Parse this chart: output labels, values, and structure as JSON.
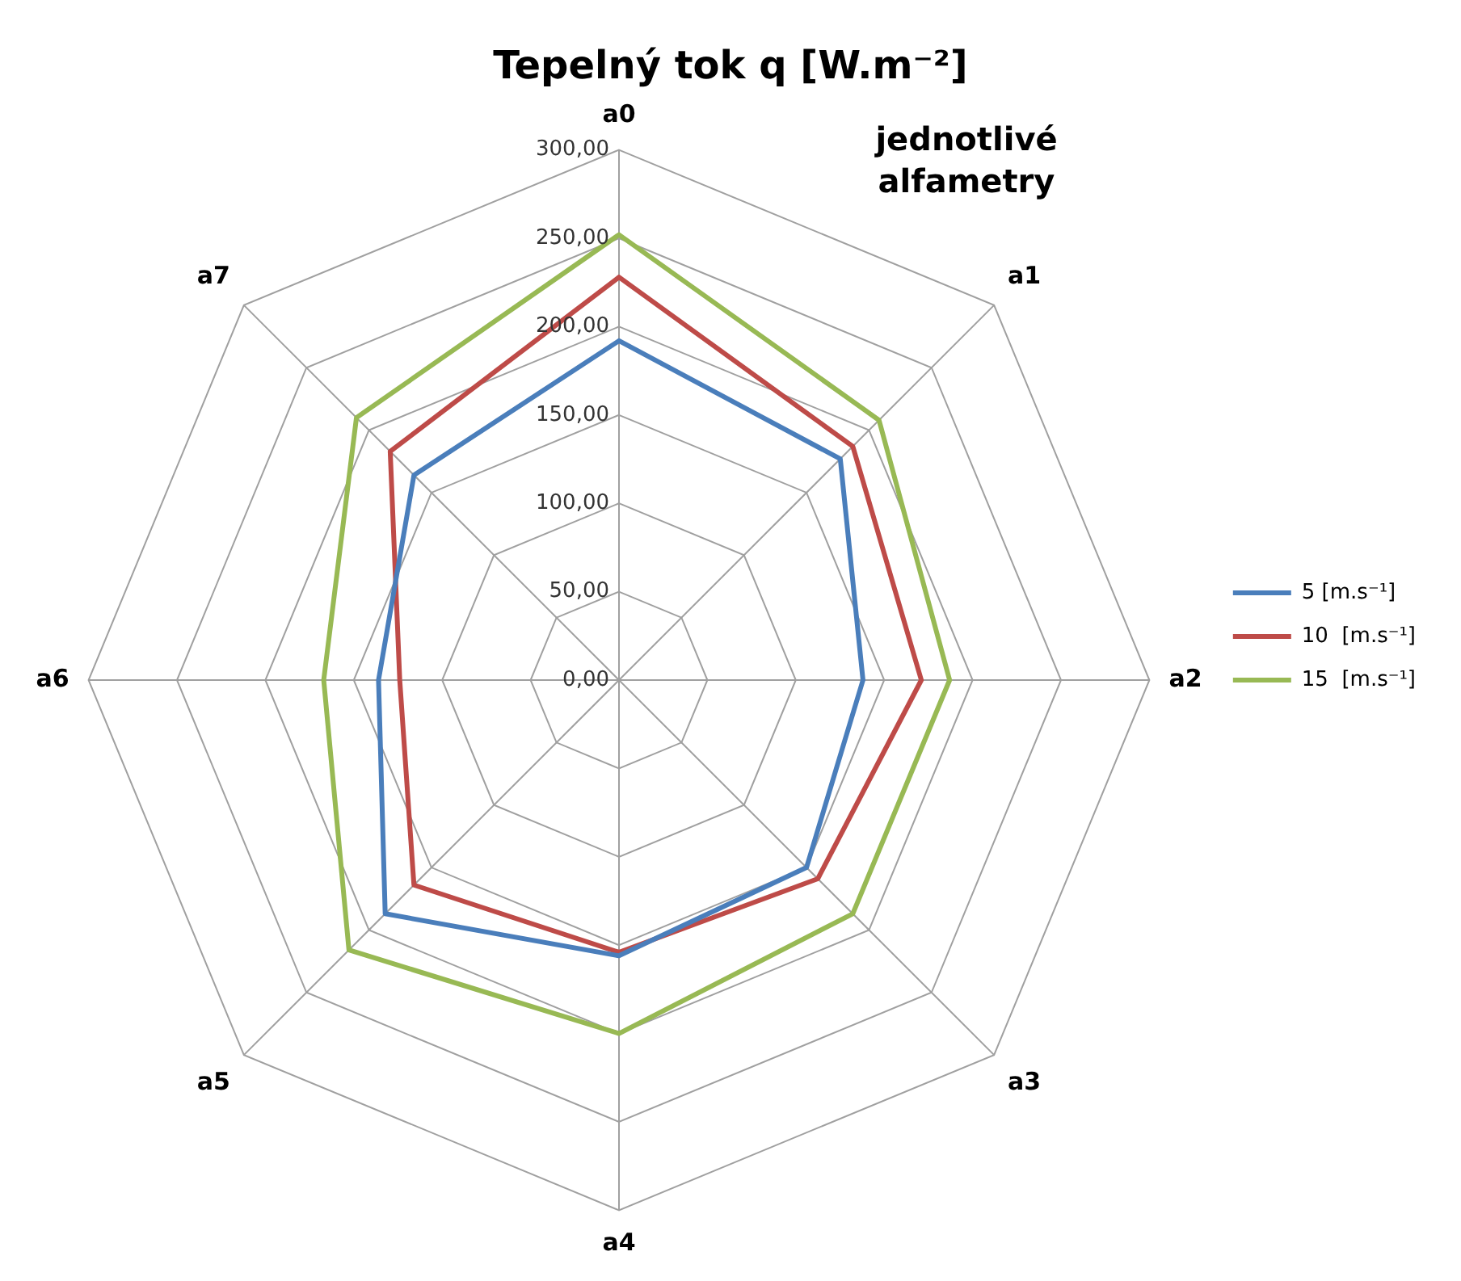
{
  "chart_data": {
    "type": "radar",
    "title": "Tepelný tok q [W.m⁻²]",
    "categories": [
      "a0",
      "a1",
      "a2",
      "a3",
      "a4",
      "a5",
      "a6",
      "a7"
    ],
    "series": [
      {
        "name": "5 [m.s⁻¹]",
        "color": "#4a7ebb",
        "values": [
          192,
          177,
          138,
          150,
          156,
          187,
          136,
          164
        ]
      },
      {
        "name": "10  [m.s⁻¹]",
        "color": "#be4b48",
        "values": [
          228,
          187,
          171,
          159,
          154,
          164,
          124,
          183
        ]
      },
      {
        "name": "15  [m.s⁻¹]",
        "color": "#98b954",
        "values": [
          252,
          208,
          187,
          187,
          200,
          216,
          167,
          210
        ]
      }
    ],
    "ylim": [
      0,
      300
    ],
    "yticks": [
      {
        "value": 0,
        "label": "0,00"
      },
      {
        "value": 50,
        "label": "50,00"
      },
      {
        "value": 100,
        "label": "100,00"
      },
      {
        "value": 150,
        "label": "150,00"
      },
      {
        "value": 200,
        "label": "200,00"
      },
      {
        "value": 250,
        "label": "250,00"
      },
      {
        "value": 300,
        "label": "300,00"
      }
    ],
    "annotations": [
      "jednotlivé alfametry"
    ],
    "grid": true,
    "legend": "right",
    "marker": "none",
    "line_style": "solid"
  }
}
